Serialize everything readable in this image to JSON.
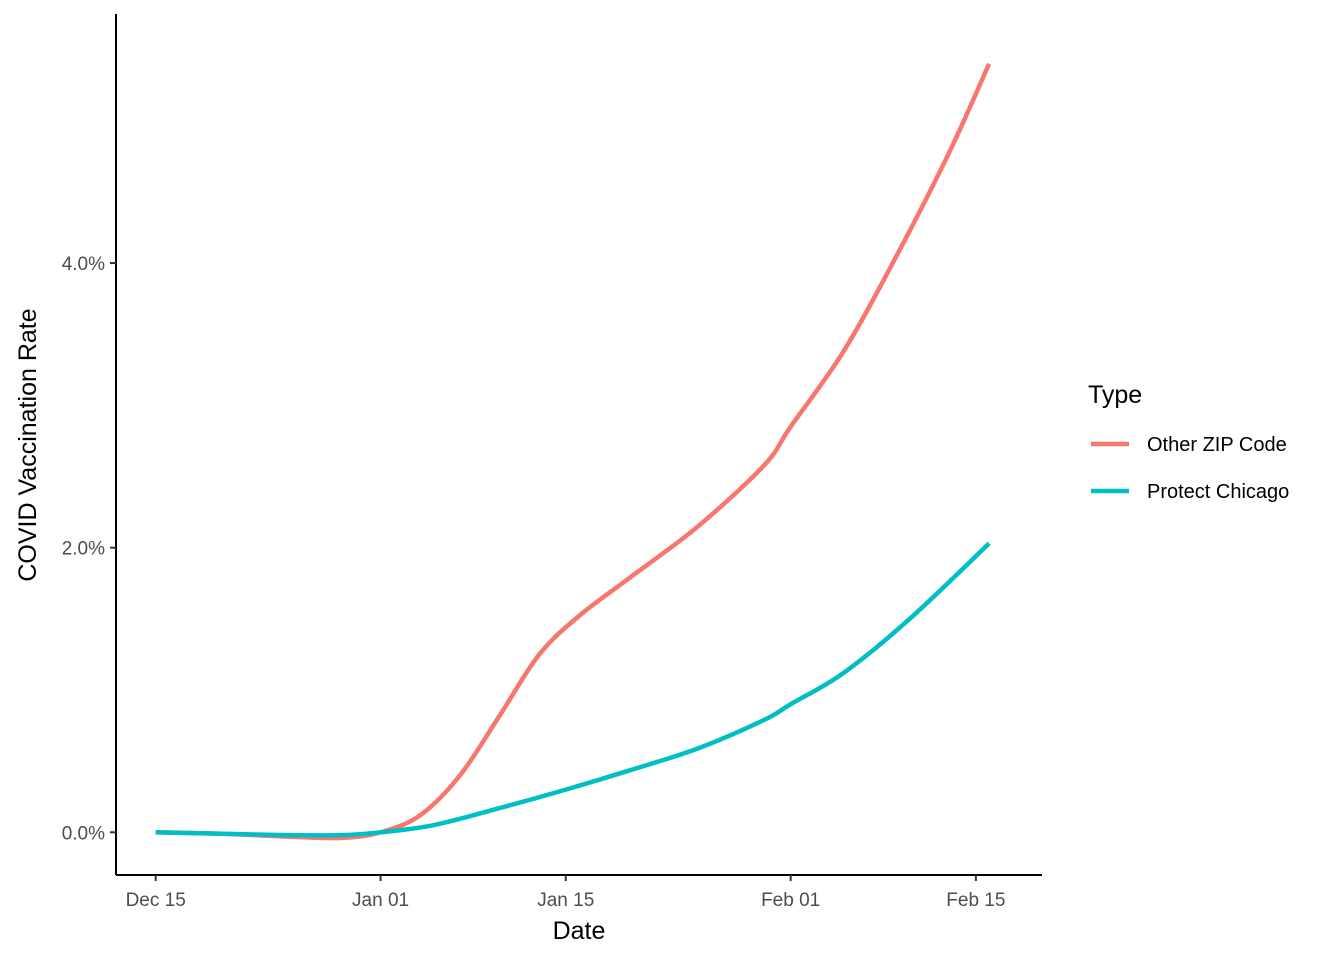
{
  "chart_data": {
    "type": "line",
    "title": "",
    "xlabel": "Date",
    "ylabel": "COVID Vaccination Rate",
    "x_ticks": [
      "Dec 15",
      "Jan 01",
      "Jan 15",
      "Feb 01",
      "Feb 15"
    ],
    "x_tick_dates": [
      "2020-12-15",
      "2021-01-01",
      "2021-01-15",
      "2021-02-01",
      "2021-02-15"
    ],
    "xlim": [
      "2020-12-12",
      "2021-02-20"
    ],
    "y_ticks": [
      "0.0%",
      "2.0%",
      "4.0%"
    ],
    "y_tick_values": [
      0.0,
      2.0,
      4.0
    ],
    "ylim": [
      -0.3,
      5.75
    ],
    "grid": false,
    "legend": {
      "title": "Type",
      "position": "right"
    },
    "series": [
      {
        "name": "Other ZIP Code",
        "color": "#F8766D",
        "points": [
          {
            "x": "2020-12-15",
            "y": 0.0
          },
          {
            "x": "2020-12-20",
            "y": -0.01
          },
          {
            "x": "2020-12-25",
            "y": -0.03
          },
          {
            "x": "2020-12-29",
            "y": -0.04
          },
          {
            "x": "2021-01-01",
            "y": 0.0
          },
          {
            "x": "2021-01-04",
            "y": 0.12
          },
          {
            "x": "2021-01-07",
            "y": 0.4
          },
          {
            "x": "2021-01-10",
            "y": 0.82
          },
          {
            "x": "2021-01-13",
            "y": 1.25
          },
          {
            "x": "2021-01-16",
            "y": 1.52
          },
          {
            "x": "2021-01-20",
            "y": 1.8
          },
          {
            "x": "2021-01-25",
            "y": 2.15
          },
          {
            "x": "2021-01-30",
            "y": 2.58
          },
          {
            "x": "2021-02-01",
            "y": 2.85
          },
          {
            "x": "2021-02-05",
            "y": 3.38
          },
          {
            "x": "2021-02-09",
            "y": 4.05
          },
          {
            "x": "2021-02-13",
            "y": 4.78
          },
          {
            "x": "2021-02-16",
            "y": 5.4
          }
        ]
      },
      {
        "name": "Protect Chicago",
        "color": "#00BFC4",
        "points": [
          {
            "x": "2020-12-15",
            "y": 0.0
          },
          {
            "x": "2020-12-20",
            "y": -0.01
          },
          {
            "x": "2020-12-25",
            "y": -0.02
          },
          {
            "x": "2020-12-29",
            "y": -0.02
          },
          {
            "x": "2021-01-01",
            "y": 0.0
          },
          {
            "x": "2021-01-05",
            "y": 0.05
          },
          {
            "x": "2021-01-10",
            "y": 0.17
          },
          {
            "x": "2021-01-15",
            "y": 0.3
          },
          {
            "x": "2021-01-20",
            "y": 0.44
          },
          {
            "x": "2021-01-25",
            "y": 0.59
          },
          {
            "x": "2021-01-30",
            "y": 0.79
          },
          {
            "x": "2021-02-01",
            "y": 0.9
          },
          {
            "x": "2021-02-05",
            "y": 1.12
          },
          {
            "x": "2021-02-10",
            "y": 1.5
          },
          {
            "x": "2021-02-16",
            "y": 2.03
          }
        ]
      }
    ]
  }
}
